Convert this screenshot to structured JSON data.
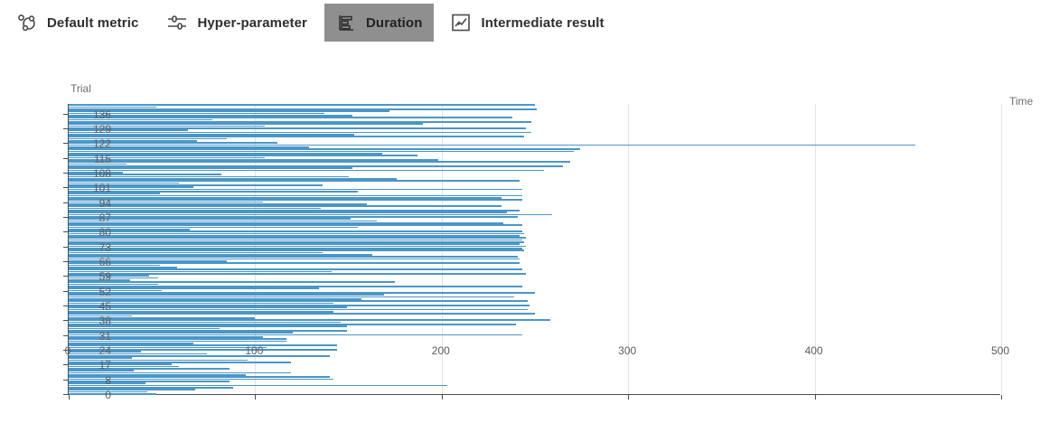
{
  "tabs": [
    {
      "label": "Default metric",
      "icon": "scatter-metric-icon",
      "selected": false
    },
    {
      "label": "Hyper-parameter",
      "icon": "sliders-icon",
      "selected": false
    },
    {
      "label": "Duration",
      "icon": "bar-chart-icon",
      "selected": true
    },
    {
      "label": "Intermediate result",
      "icon": "line-chart-icon",
      "selected": false
    }
  ],
  "colors": {
    "bar": "#4a96c8",
    "selected_tab_bg": "#8f8f8f",
    "axis": "#4d4d4d",
    "grid": "#e2e2e2",
    "tick_text": "#5c5c5c"
  },
  "chart_data": {
    "type": "bar",
    "orientation": "horizontal",
    "title": "Trial",
    "xlabel": "Time",
    "ylabel": "Trial",
    "xlim": [
      0,
      500
    ],
    "x_ticks": [
      0,
      100,
      200,
      300,
      400,
      500
    ],
    "grid": "vertical-only",
    "legend": "none",
    "y_tick_labels": [
      "0",
      "8",
      "17",
      "24",
      "31",
      "38",
      "45",
      "52",
      "59",
      "66",
      "73",
      "80",
      "87",
      "94",
      "101",
      "108",
      "115",
      "122",
      "129",
      "136"
    ],
    "y_tick_indices": [
      0,
      7,
      14,
      21,
      28,
      35,
      42,
      49,
      56,
      63,
      70,
      77,
      84,
      91,
      98,
      105,
      112,
      119,
      126,
      133
    ],
    "values_note": "durations bottom-to-top, one per trial category",
    "values": [
      47,
      42,
      68,
      88,
      203,
      41,
      86,
      142,
      140,
      95,
      119,
      35,
      86,
      59,
      55,
      119,
      96,
      34,
      140,
      74,
      39,
      144,
      106,
      144,
      67,
      117,
      117,
      104,
      243,
      120,
      149,
      81,
      149,
      240,
      146,
      258,
      100,
      34,
      250,
      142,
      246,
      149,
      247,
      142,
      246,
      157,
      239,
      169,
      250,
      50,
      134,
      243,
      48,
      175,
      33,
      48,
      43,
      245,
      141,
      243,
      58,
      49,
      242,
      85,
      242,
      241,
      163,
      136,
      244,
      243,
      245,
      242,
      244,
      243,
      245,
      242,
      244,
      243,
      65,
      155,
      243,
      233,
      165,
      151,
      241,
      259,
      235,
      242,
      135,
      232,
      160,
      104,
      243,
      232,
      243,
      49,
      155,
      243,
      67,
      136,
      59,
      242,
      176,
      150,
      82,
      29,
      255,
      152,
      265,
      31,
      269,
      198,
      105,
      187,
      168,
      271,
      274,
      129,
      454,
      112,
      69,
      85,
      244,
      153,
      248,
      64,
      245,
      105,
      190,
      248,
      77,
      238,
      152,
      137,
      172,
      251,
      47,
      250
    ]
  }
}
